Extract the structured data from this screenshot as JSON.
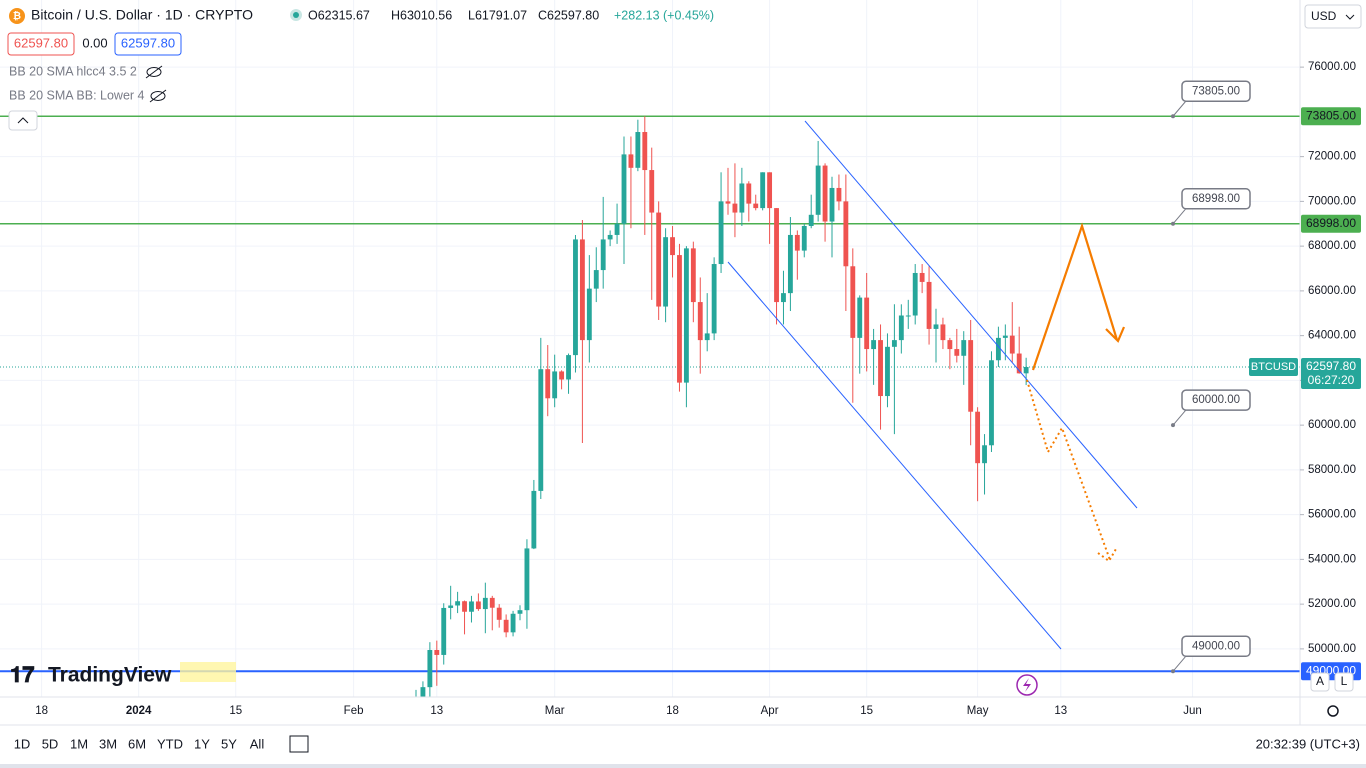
{
  "header": {
    "symbol_title": "Bitcoin / U.S. Dollar · 1D · CRYPTO",
    "ohlc": [
      "O62315.67",
      "H63010.56",
      "L61791.07",
      "C62597.80",
      "+282.13 (+0.45%)"
    ],
    "bid": "62597.80",
    "spread": "0.00",
    "ask": "62597.80",
    "indicators": [
      "BB 20 SMA hlcc4 3.5 2",
      "BB 20 SMA BB: Lower 4"
    ],
    "currency": "USD",
    "logo": "TradingView"
  },
  "toolbar": {
    "ranges": [
      "1D",
      "5D",
      "1M",
      "3M",
      "6M",
      "YTD",
      "1Y",
      "5Y",
      "All"
    ],
    "clock": "20:32:39 (UTC+3)"
  },
  "chart_data": {
    "type": "candlestick",
    "title": "Bitcoin / U.S. Dollar · 1D · CRYPTO",
    "up_color": "#26a69a",
    "down_color": "#ef5350",
    "x": [
      41,
      42,
      43,
      44,
      45,
      46,
      47,
      48,
      49,
      50,
      51,
      52,
      53,
      54,
      55,
      56,
      57,
      58,
      59,
      60,
      61,
      62,
      63,
      64,
      65,
      66,
      67,
      68,
      69,
      70,
      71,
      72,
      73,
      74,
      75,
      76,
      77,
      78,
      79,
      80,
      81,
      82,
      83,
      84,
      85,
      86,
      87,
      88,
      89,
      90,
      91,
      92,
      93,
      94,
      95,
      96,
      97,
      98,
      99,
      100,
      101,
      102,
      103,
      104,
      105,
      106,
      107,
      108,
      109,
      110,
      111,
      112,
      113,
      114,
      115,
      116,
      117,
      118,
      119,
      120,
      121,
      122,
      123,
      124,
      125,
      126,
      127,
      128,
      129
    ],
    "open": [
      47130,
      47750,
      48290,
      49950,
      49730,
      51830,
      51940,
      52130,
      51660,
      52120,
      51780,
      52280,
      51840,
      51300,
      50740,
      51570,
      51730,
      54490,
      57060,
      62500,
      61200,
      62400,
      62040,
      63130,
      68300,
      63800,
      66100,
      66930,
      68300,
      68500,
      69000,
      72100,
      71500,
      73100,
      71400,
      69500,
      65300,
      68400,
      67600,
      61900,
      67900,
      65500,
      63800,
      64100,
      67200,
      70000,
      69900,
      69500,
      70800,
      69900,
      69700,
      71300,
      69700,
      65500,
      65900,
      68500,
      67800,
      68900,
      69400,
      71600,
      69100,
      70600,
      70000,
      67100,
      63900,
      65700,
      63400,
      63800,
      61300,
      63500,
      63800,
      64900,
      64900,
      66800,
      66400,
      64300,
      64500,
      63800,
      63400,
      63100,
      63800,
      60600,
      58300,
      59100,
      62900,
      63900,
      64000,
      63200,
      62315.67
    ],
    "high": [
      48170,
      48550,
      50300,
      50370,
      52040,
      52820,
      52550,
      52160,
      52370,
      52480,
      52960,
      52370,
      52000,
      51540,
      51700,
      51950,
      54900,
      57550,
      63900,
      63580,
      63150,
      62450,
      63200,
      68500,
      69170,
      67600,
      67950,
      70200,
      68700,
      69900,
      72900,
      72900,
      73650,
      73800,
      72400,
      70000,
      68800,
      68900,
      68100,
      68000,
      68200,
      66600,
      65900,
      67500,
      71300,
      71500,
      71700,
      71500,
      70900,
      70300,
      71300,
      71300,
      69700,
      66900,
      69300,
      68700,
      69000,
      70300,
      72700,
      71700,
      71100,
      71200,
      71200,
      67900,
      65800,
      66800,
      64300,
      64500,
      64100,
      65400,
      65400,
      65600,
      67200,
      67200,
      67100,
      65200,
      64800,
      63900,
      64300,
      64200,
      64700,
      60800,
      59600,
      63300,
      64400,
      64500,
      65500,
      64400,
      63010.56
    ],
    "low": [
      46800,
      47550,
      47700,
      48350,
      49300,
      51320,
      51600,
      50650,
      51180,
      51700,
      50700,
      50830,
      50950,
      50520,
      50560,
      51280,
      50900,
      54460,
      56700,
      60400,
      60800,
      61600,
      61400,
      62350,
      59200,
      62800,
      65500,
      66100,
      68000,
      68100,
      67200,
      68800,
      71350,
      68500,
      65600,
      64700,
      64600,
      66600,
      61500,
      60800,
      64600,
      62300,
      63300,
      63800,
      66800,
      69400,
      68400,
      68900,
      69100,
      69600,
      69600,
      68100,
      64500,
      64500,
      65100,
      66500,
      67500,
      68800,
      69100,
      68200,
      67500,
      69600,
      65100,
      61000,
      62300,
      62400,
      61800,
      59800,
      60800,
      59600,
      63200,
      64300,
      64500,
      65900,
      63600,
      62800,
      63400,
      62500,
      62800,
      61800,
      59100,
      56600,
      56900,
      58800,
      62600,
      62900,
      62800,
      62300,
      61791.07
    ],
    "close": [
      47750,
      48290,
      49950,
      49730,
      51830,
      51940,
      52130,
      51660,
      52120,
      51780,
      52280,
      51840,
      51300,
      50740,
      51570,
      51730,
      54490,
      57060,
      62500,
      61200,
      62400,
      62040,
      63130,
      68300,
      63800,
      66100,
      66930,
      68300,
      68500,
      69000,
      72100,
      71500,
      73100,
      71400,
      69500,
      65300,
      68400,
      67600,
      61900,
      67900,
      65500,
      63800,
      64100,
      67200,
      70000,
      69900,
      69500,
      70800,
      69900,
      69700,
      71300,
      69700,
      65500,
      65900,
      68500,
      67800,
      68900,
      69400,
      71600,
      69100,
      70600,
      70000,
      67100,
      63900,
      65700,
      63400,
      63800,
      61300,
      63500,
      63800,
      64900,
      64900,
      66800,
      66400,
      64300,
      64500,
      63800,
      63400,
      63100,
      63800,
      60600,
      58300,
      59100,
      62900,
      63900,
      64000,
      63200,
      62316,
      62597.8
    ],
    "xlim": [
      -19,
      168.5
    ],
    "xticks": [
      {
        "value": -13,
        "label": "18"
      },
      {
        "value": 1,
        "label": "2024"
      },
      {
        "value": 15,
        "label": "15"
      },
      {
        "value": 32,
        "label": "Feb"
      },
      {
        "value": 44,
        "label": "13"
      },
      {
        "value": 61,
        "label": "Mar"
      },
      {
        "value": 78,
        "label": "18"
      },
      {
        "value": 92,
        "label": "Apr"
      },
      {
        "value": 106,
        "label": "15"
      },
      {
        "value": 122,
        "label": "May"
      },
      {
        "value": 134,
        "label": "13"
      },
      {
        "value": 153,
        "label": "Jun"
      }
    ],
    "ylim": [
      47850,
      79000
    ],
    "yticks": [
      {
        "value": 50000,
        "label": "50000.00"
      },
      {
        "value": 52000,
        "label": "52000.00"
      },
      {
        "value": 54000,
        "label": "54000.00"
      },
      {
        "value": 56000,
        "label": "56000.00"
      },
      {
        "value": 58000,
        "label": "58000.00"
      },
      {
        "value": 60000,
        "label": "60000.00"
      },
      {
        "value": 62000,
        "label": "62000.00"
      },
      {
        "value": 64000,
        "label": "64000.00"
      },
      {
        "value": 66000,
        "label": "66000.00"
      },
      {
        "value": 68000,
        "label": "68000.00"
      },
      {
        "value": 70000,
        "label": "70000.00"
      },
      {
        "value": 72000,
        "label": "72000.00"
      },
      {
        "value": 76000,
        "label": "76000.00"
      }
    ],
    "grid": true,
    "levels": [
      {
        "value": 73805,
        "label": "73805.00",
        "color": "#4caf50",
        "line": true
      },
      {
        "value": 68998,
        "label": "68998.00",
        "color": "#4caf50",
        "line": true
      },
      {
        "value": 60000,
        "label": "60000.00",
        "color": "#787b86",
        "line": false
      },
      {
        "value": 49000,
        "label": "49000.00",
        "color": "#2962ff",
        "line": true
      }
    ],
    "last_price": {
      "value": 62597.8,
      "label": "62597.80",
      "symbol": "BTCUSD",
      "countdown": "06:27:20",
      "color": "#26a69a"
    }
  }
}
